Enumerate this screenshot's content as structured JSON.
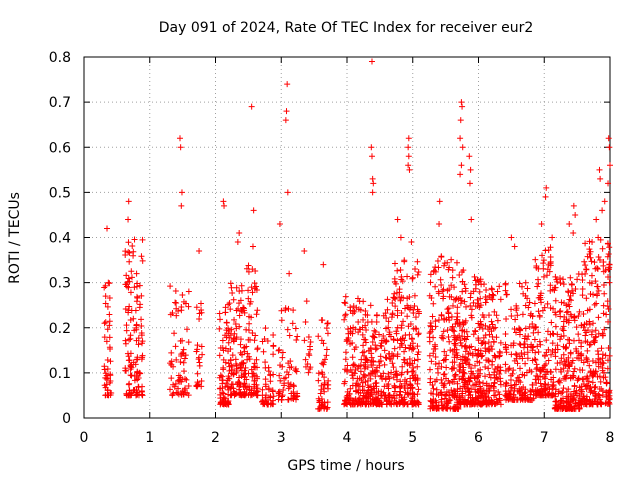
{
  "chart_data": {
    "type": "scatter",
    "title": "Day 091 of 2024, Rate Of TEC Index for receiver eur2",
    "xlabel": "GPS time / hours",
    "ylabel": "ROTI / TECUs",
    "xlim": [
      0,
      8
    ],
    "ylim": [
      0,
      0.8
    ],
    "xticks": [
      "0",
      "1",
      "2",
      "3",
      "4",
      "5",
      "6",
      "7",
      "8"
    ],
    "yticks": [
      "0",
      "0.1",
      "0.2",
      "0.3",
      "0.4",
      "0.5",
      "0.6",
      "0.7",
      "0.8"
    ],
    "grid": true,
    "marker_color": "#ff0000",
    "marker": "+",
    "point_count_estimate": 2600,
    "series": [
      {
        "name": "ROTI",
        "outliers": [
          {
            "x": 0.35,
            "y": 0.42
          },
          {
            "x": 0.68,
            "y": 0.48
          },
          {
            "x": 0.67,
            "y": 0.44
          },
          {
            "x": 1.46,
            "y": 0.62
          },
          {
            "x": 1.47,
            "y": 0.6
          },
          {
            "x": 1.49,
            "y": 0.5
          },
          {
            "x": 1.48,
            "y": 0.47
          },
          {
            "x": 2.12,
            "y": 0.48
          },
          {
            "x": 2.13,
            "y": 0.47
          },
          {
            "x": 2.55,
            "y": 0.69
          },
          {
            "x": 2.58,
            "y": 0.46
          },
          {
            "x": 3.09,
            "y": 0.74
          },
          {
            "x": 3.08,
            "y": 0.68
          },
          {
            "x": 3.07,
            "y": 0.66
          },
          {
            "x": 3.1,
            "y": 0.5
          },
          {
            "x": 2.98,
            "y": 0.43
          },
          {
            "x": 3.64,
            "y": 0.34
          },
          {
            "x": 4.38,
            "y": 0.79
          },
          {
            "x": 4.37,
            "y": 0.6
          },
          {
            "x": 4.38,
            "y": 0.58
          },
          {
            "x": 4.39,
            "y": 0.53
          },
          {
            "x": 4.4,
            "y": 0.52
          },
          {
            "x": 4.39,
            "y": 0.5
          },
          {
            "x": 4.94,
            "y": 0.62
          },
          {
            "x": 4.93,
            "y": 0.6
          },
          {
            "x": 4.94,
            "y": 0.58
          },
          {
            "x": 4.93,
            "y": 0.56
          },
          {
            "x": 4.95,
            "y": 0.55
          },
          {
            "x": 4.98,
            "y": 0.39
          },
          {
            "x": 5.74,
            "y": 0.7
          },
          {
            "x": 5.75,
            "y": 0.69
          },
          {
            "x": 5.73,
            "y": 0.66
          },
          {
            "x": 5.72,
            "y": 0.62
          },
          {
            "x": 5.76,
            "y": 0.6
          },
          {
            "x": 5.74,
            "y": 0.56
          },
          {
            "x": 5.72,
            "y": 0.54
          },
          {
            "x": 5.86,
            "y": 0.58
          },
          {
            "x": 5.88,
            "y": 0.55
          },
          {
            "x": 5.87,
            "y": 0.52
          },
          {
            "x": 5.89,
            "y": 0.44
          },
          {
            "x": 5.41,
            "y": 0.48
          },
          {
            "x": 5.4,
            "y": 0.43
          },
          {
            "x": 7.03,
            "y": 0.51
          },
          {
            "x": 7.02,
            "y": 0.49
          },
          {
            "x": 6.96,
            "y": 0.43
          },
          {
            "x": 7.12,
            "y": 0.4
          },
          {
            "x": 7.45,
            "y": 0.47
          },
          {
            "x": 7.47,
            "y": 0.45
          },
          {
            "x": 7.44,
            "y": 0.41
          },
          {
            "x": 7.38,
            "y": 0.43
          },
          {
            "x": 7.84,
            "y": 0.55
          },
          {
            "x": 7.85,
            "y": 0.53
          },
          {
            "x": 7.92,
            "y": 0.48
          },
          {
            "x": 7.88,
            "y": 0.46
          },
          {
            "x": 7.98,
            "y": 0.62
          },
          {
            "x": 7.99,
            "y": 0.6
          },
          {
            "x": 8.0,
            "y": 0.56
          },
          {
            "x": 7.97,
            "y": 0.52
          },
          {
            "x": 7.79,
            "y": 0.44
          },
          {
            "x": 7.82,
            "y": 0.4
          },
          {
            "x": 4.77,
            "y": 0.44
          },
          {
            "x": 4.82,
            "y": 0.4
          },
          {
            "x": 6.5,
            "y": 0.4
          },
          {
            "x": 6.55,
            "y": 0.38
          },
          {
            "x": 2.36,
            "y": 0.41
          },
          {
            "x": 2.34,
            "y": 0.39
          },
          {
            "x": 2.57,
            "y": 0.38
          },
          {
            "x": 1.75,
            "y": 0.37
          },
          {
            "x": 3.35,
            "y": 0.37
          },
          {
            "x": 3.12,
            "y": 0.32
          },
          {
            "x": 0.8,
            "y": 0.32
          },
          {
            "x": 0.37,
            "y": 0.3
          }
        ],
        "clusters": [
          {
            "x_start": 0.3,
            "x_end": 0.42,
            "y_low": 0.05,
            "y_high": 0.3,
            "n": 45
          },
          {
            "x_start": 0.62,
            "x_end": 0.9,
            "y_low": 0.05,
            "y_high": 0.4,
            "n": 130
          },
          {
            "x_start": 1.3,
            "x_end": 1.6,
            "y_low": 0.05,
            "y_high": 0.3,
            "n": 70
          },
          {
            "x_start": 1.7,
            "x_end": 1.8,
            "y_low": 0.07,
            "y_high": 0.33,
            "n": 25
          },
          {
            "x_start": 2.05,
            "x_end": 2.22,
            "y_low": 0.03,
            "y_high": 0.28,
            "n": 80
          },
          {
            "x_start": 2.22,
            "x_end": 2.45,
            "y_low": 0.05,
            "y_high": 0.3,
            "n": 110
          },
          {
            "x_start": 2.45,
            "x_end": 2.65,
            "y_low": 0.05,
            "y_high": 0.34,
            "n": 80
          },
          {
            "x_start": 2.7,
            "x_end": 2.9,
            "y_low": 0.03,
            "y_high": 0.2,
            "n": 50
          },
          {
            "x_start": 2.95,
            "x_end": 3.25,
            "y_low": 0.04,
            "y_high": 0.25,
            "n": 65
          },
          {
            "x_start": 3.35,
            "x_end": 3.45,
            "y_low": 0.1,
            "y_high": 0.28,
            "n": 15
          },
          {
            "x_start": 3.55,
            "x_end": 3.72,
            "y_low": 0.02,
            "y_high": 0.22,
            "n": 55
          },
          {
            "x_start": 3.95,
            "x_end": 4.7,
            "y_low": 0.03,
            "y_high": 0.27,
            "n": 360
          },
          {
            "x_start": 4.7,
            "x_end": 5.1,
            "y_low": 0.03,
            "y_high": 0.35,
            "n": 220
          },
          {
            "x_start": 5.25,
            "x_end": 5.7,
            "y_low": 0.02,
            "y_high": 0.36,
            "n": 250
          },
          {
            "x_start": 5.7,
            "x_end": 6.05,
            "y_low": 0.03,
            "y_high": 0.33,
            "n": 240
          },
          {
            "x_start": 6.05,
            "x_end": 6.35,
            "y_low": 0.03,
            "y_high": 0.3,
            "n": 150
          },
          {
            "x_start": 6.4,
            "x_end": 6.85,
            "y_low": 0.04,
            "y_high": 0.3,
            "n": 180
          },
          {
            "x_start": 6.85,
            "x_end": 7.15,
            "y_low": 0.05,
            "y_high": 0.38,
            "n": 150
          },
          {
            "x_start": 7.15,
            "x_end": 7.55,
            "y_low": 0.02,
            "y_high": 0.32,
            "n": 240
          },
          {
            "x_start": 7.55,
            "x_end": 8.0,
            "y_low": 0.03,
            "y_high": 0.4,
            "n": 260
          }
        ]
      }
    ]
  }
}
